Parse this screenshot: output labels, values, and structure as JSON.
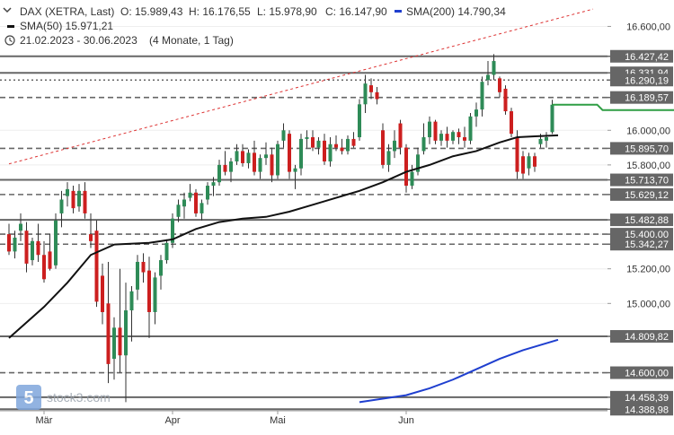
{
  "header": {
    "instrument": "DAX (XETRA, Last)",
    "open_label": "O: 15.989,43",
    "high_label": "H: 16.176,55",
    "low_label": "L: 15.978,90",
    "close_label": "C: 16.147,90",
    "sma200_label": "SMA(200)  14.790,34",
    "sma50_label": "SMA(50)  15.971,21",
    "period": "21.02.2023 - 30.06.2023",
    "range": "(4 Monate, 1 Tag)"
  },
  "watermark": "stock3.com",
  "colors": {
    "up": "#2e8b57",
    "down": "#cc1f1f",
    "sma50": "#111111",
    "sma200": "#1f3fcf",
    "trendline": "#dd3333",
    "level_box": "#666666",
    "current_price": "#2f9e44",
    "header_sma200": "#1f3fcf"
  },
  "chart_data": {
    "type": "candlestick",
    "ylim": [
      14380,
      16680
    ],
    "y_ticks": [
      {
        "value": 16600,
        "label": "16.600,00"
      },
      {
        "value": 16000,
        "label": "16.000,00"
      },
      {
        "value": 15800,
        "label": "15.800,00"
      },
      {
        "value": 15400,
        "label": "15.400,00"
      },
      {
        "value": 15200,
        "label": "15.200,00"
      },
      {
        "value": 15000,
        "label": "15.000,00"
      },
      {
        "value": 14600,
        "label": "14.600,00"
      }
    ],
    "x_ticks": [
      {
        "index": 6,
        "label": "Mär"
      },
      {
        "index": 28,
        "label": "Apr"
      },
      {
        "index": 46,
        "label": "Mai"
      },
      {
        "index": 68,
        "label": "Jun"
      }
    ],
    "levels": [
      {
        "value": 16427.42,
        "label": "16.427,42",
        "style": "solid"
      },
      {
        "value": 16331.94,
        "label": "16.331,94",
        "style": "solid"
      },
      {
        "value": 16290.19,
        "label": "16.290,19",
        "style": "dotted"
      },
      {
        "value": 16189.57,
        "label": "16.189,57",
        "style": "dashed"
      },
      {
        "value": 15895.7,
        "label": "15.895,70",
        "style": "dashed"
      },
      {
        "value": 15713.7,
        "label": "15.713,70",
        "style": "solid"
      },
      {
        "value": 15629.12,
        "label": "15.629,12",
        "style": "dashed"
      },
      {
        "value": 15482.88,
        "label": "15.482,88",
        "style": "solid"
      },
      {
        "value": 15400.0,
        "label": "15.400,00",
        "style": "dashed"
      },
      {
        "value": 15342.27,
        "label": "15.342,27",
        "style": "dashed"
      },
      {
        "value": 14809.82,
        "label": "14.809,82",
        "style": "solid"
      },
      {
        "value": 14600.0,
        "label": "14.600,00",
        "style": "dashed"
      },
      {
        "value": 14458.39,
        "label": "14.458,39",
        "style": "solid"
      },
      {
        "value": 14388.98,
        "label": "14.388,98",
        "style": "solid"
      }
    ],
    "current_price": 16147.9,
    "candles": [
      {
        "o": 15400,
        "h": 15460,
        "l": 15280,
        "c": 15300
      },
      {
        "o": 15300,
        "h": 15420,
        "l": 15260,
        "c": 15380
      },
      {
        "o": 15420,
        "h": 15520,
        "l": 15360,
        "c": 15460
      },
      {
        "o": 15420,
        "h": 15470,
        "l": 15180,
        "c": 15230
      },
      {
        "o": 15250,
        "h": 15380,
        "l": 15220,
        "c": 15360
      },
      {
        "o": 15360,
        "h": 15460,
        "l": 15240,
        "c": 15280
      },
      {
        "o": 15280,
        "h": 15360,
        "l": 15120,
        "c": 15140
      },
      {
        "o": 15300,
        "h": 15400,
        "l": 15190,
        "c": 15200
      },
      {
        "o": 15220,
        "h": 15520,
        "l": 15200,
        "c": 15480
      },
      {
        "o": 15520,
        "h": 15650,
        "l": 15440,
        "c": 15600
      },
      {
        "o": 15620,
        "h": 15700,
        "l": 15560,
        "c": 15660
      },
      {
        "o": 15650,
        "h": 15680,
        "l": 15520,
        "c": 15550
      },
      {
        "o": 15560,
        "h": 15690,
        "l": 15530,
        "c": 15650
      },
      {
        "o": 15650,
        "h": 15700,
        "l": 15490,
        "c": 15520
      },
      {
        "o": 15400,
        "h": 15520,
        "l": 15320,
        "c": 15360
      },
      {
        "o": 15420,
        "h": 15480,
        "l": 14980,
        "c": 15010
      },
      {
        "o": 15160,
        "h": 15230,
        "l": 14880,
        "c": 14950
      },
      {
        "o": 15000,
        "h": 15240,
        "l": 14540,
        "c": 14650
      },
      {
        "o": 14680,
        "h": 14920,
        "l": 14560,
        "c": 14860
      },
      {
        "o": 14860,
        "h": 15200,
        "l": 14600,
        "c": 14700
      },
      {
        "o": 14700,
        "h": 15120,
        "l": 14430,
        "c": 14960
      },
      {
        "o": 14960,
        "h": 15100,
        "l": 14780,
        "c": 15070
      },
      {
        "o": 15080,
        "h": 15280,
        "l": 15020,
        "c": 15240
      },
      {
        "o": 15240,
        "h": 15290,
        "l": 15120,
        "c": 15180
      },
      {
        "o": 15190,
        "h": 15270,
        "l": 14800,
        "c": 14950
      },
      {
        "o": 14950,
        "h": 15180,
        "l": 14880,
        "c": 15150
      },
      {
        "o": 15160,
        "h": 15280,
        "l": 15080,
        "c": 15250
      },
      {
        "o": 15250,
        "h": 15370,
        "l": 15230,
        "c": 15350
      },
      {
        "o": 15350,
        "h": 15520,
        "l": 15320,
        "c": 15490
      },
      {
        "o": 15500,
        "h": 15600,
        "l": 15470,
        "c": 15570
      },
      {
        "o": 15560,
        "h": 15640,
        "l": 15490,
        "c": 15600
      },
      {
        "o": 15610,
        "h": 15690,
        "l": 15590,
        "c": 15640
      },
      {
        "o": 15640,
        "h": 15660,
        "l": 15500,
        "c": 15520
      },
      {
        "o": 15520,
        "h": 15600,
        "l": 15480,
        "c": 15580
      },
      {
        "o": 15600,
        "h": 15700,
        "l": 15570,
        "c": 15680
      },
      {
        "o": 15680,
        "h": 15730,
        "l": 15620,
        "c": 15700
      },
      {
        "o": 15700,
        "h": 15830,
        "l": 15680,
        "c": 15800
      },
      {
        "o": 15800,
        "h": 15880,
        "l": 15740,
        "c": 15760
      },
      {
        "o": 15760,
        "h": 15840,
        "l": 15700,
        "c": 15820
      },
      {
        "o": 15820,
        "h": 15920,
        "l": 15800,
        "c": 15880
      },
      {
        "o": 15880,
        "h": 15920,
        "l": 15790,
        "c": 15810
      },
      {
        "o": 15810,
        "h": 15890,
        "l": 15780,
        "c": 15870
      },
      {
        "o": 15870,
        "h": 15940,
        "l": 15740,
        "c": 15760
      },
      {
        "o": 15760,
        "h": 15860,
        "l": 15720,
        "c": 15840
      },
      {
        "o": 15840,
        "h": 15930,
        "l": 15800,
        "c": 15860
      },
      {
        "o": 15860,
        "h": 15900,
        "l": 15700,
        "c": 15740
      },
      {
        "o": 15740,
        "h": 15940,
        "l": 15720,
        "c": 15920
      },
      {
        "o": 15940,
        "h": 16040,
        "l": 15900,
        "c": 16000
      },
      {
        "o": 15980,
        "h": 16000,
        "l": 15720,
        "c": 15760
      },
      {
        "o": 15760,
        "h": 15800,
        "l": 15660,
        "c": 15780
      },
      {
        "o": 15780,
        "h": 15980,
        "l": 15740,
        "c": 15950
      },
      {
        "o": 15950,
        "h": 16000,
        "l": 15900,
        "c": 15960
      },
      {
        "o": 15960,
        "h": 16000,
        "l": 15880,
        "c": 15900
      },
      {
        "o": 15900,
        "h": 15960,
        "l": 15860,
        "c": 15940
      },
      {
        "o": 15940,
        "h": 15980,
        "l": 15800,
        "c": 15820
      },
      {
        "o": 15820,
        "h": 15960,
        "l": 15790,
        "c": 15920
      },
      {
        "o": 15920,
        "h": 15970,
        "l": 15880,
        "c": 15900
      },
      {
        "o": 15900,
        "h": 15950,
        "l": 15860,
        "c": 15880
      },
      {
        "o": 15880,
        "h": 15970,
        "l": 15860,
        "c": 15950
      },
      {
        "o": 15950,
        "h": 15990,
        "l": 15900,
        "c": 15910
      },
      {
        "o": 15960,
        "h": 16180,
        "l": 15940,
        "c": 16150
      },
      {
        "o": 16150,
        "h": 16320,
        "l": 16100,
        "c": 16270
      },
      {
        "o": 16260,
        "h": 16300,
        "l": 16180,
        "c": 16220
      },
      {
        "o": 16220,
        "h": 16250,
        "l": 16150,
        "c": 16180
      },
      {
        "o": 16000,
        "h": 16040,
        "l": 15780,
        "c": 15800
      },
      {
        "o": 15800,
        "h": 15920,
        "l": 15760,
        "c": 15880
      },
      {
        "o": 15880,
        "h": 16000,
        "l": 15840,
        "c": 15940
      },
      {
        "o": 16040,
        "h": 16060,
        "l": 15860,
        "c": 15900
      },
      {
        "o": 15900,
        "h": 15920,
        "l": 15640,
        "c": 15680
      },
      {
        "o": 15680,
        "h": 15800,
        "l": 15660,
        "c": 15760
      },
      {
        "o": 15760,
        "h": 15900,
        "l": 15740,
        "c": 15860
      },
      {
        "o": 15880,
        "h": 16040,
        "l": 15860,
        "c": 15960
      },
      {
        "o": 15960,
        "h": 16080,
        "l": 15920,
        "c": 16050
      },
      {
        "o": 16050,
        "h": 16060,
        "l": 15920,
        "c": 15940
      },
      {
        "o": 15940,
        "h": 16000,
        "l": 15910,
        "c": 15980
      },
      {
        "o": 15980,
        "h": 16020,
        "l": 15900,
        "c": 15940
      },
      {
        "o": 15940,
        "h": 16000,
        "l": 15920,
        "c": 15990
      },
      {
        "o": 15990,
        "h": 16010,
        "l": 15920,
        "c": 15960
      },
      {
        "o": 15960,
        "h": 16020,
        "l": 15900,
        "c": 15940
      },
      {
        "o": 15940,
        "h": 16100,
        "l": 15920,
        "c": 16080
      },
      {
        "o": 16080,
        "h": 16160,
        "l": 16020,
        "c": 16120
      },
      {
        "o": 16120,
        "h": 16310,
        "l": 16080,
        "c": 16280
      },
      {
        "o": 16290,
        "h": 16400,
        "l": 16260,
        "c": 16320
      },
      {
        "o": 16320,
        "h": 16440,
        "l": 16290,
        "c": 16400
      },
      {
        "o": 16300,
        "h": 16310,
        "l": 16190,
        "c": 16220
      },
      {
        "o": 16240,
        "h": 16260,
        "l": 16090,
        "c": 16110
      },
      {
        "o": 16110,
        "h": 16130,
        "l": 15960,
        "c": 15980
      },
      {
        "o": 15960,
        "h": 16000,
        "l": 15720,
        "c": 15760
      },
      {
        "o": 15850,
        "h": 15880,
        "l": 15720,
        "c": 15750
      },
      {
        "o": 15780,
        "h": 15870,
        "l": 15740,
        "c": 15850
      },
      {
        "o": 15850,
        "h": 15870,
        "l": 15760,
        "c": 15790
      },
      {
        "o": 15920,
        "h": 15980,
        "l": 15900,
        "c": 15950
      },
      {
        "o": 15940,
        "h": 15990,
        "l": 15900,
        "c": 15960
      },
      {
        "o": 15989.43,
        "h": 16176.55,
        "l": 15978.9,
        "c": 16147.9
      }
    ],
    "sma50": [
      [
        0,
        14800
      ],
      [
        6,
        14980
      ],
      [
        10,
        15120
      ],
      [
        14,
        15280
      ],
      [
        18,
        15340
      ],
      [
        24,
        15350
      ],
      [
        28,
        15370
      ],
      [
        32,
        15430
      ],
      [
        36,
        15470
      ],
      [
        40,
        15490
      ],
      [
        44,
        15500
      ],
      [
        48,
        15530
      ],
      [
        52,
        15570
      ],
      [
        56,
        15610
      ],
      [
        60,
        15650
      ],
      [
        64,
        15700
      ],
      [
        68,
        15760
      ],
      [
        72,
        15800
      ],
      [
        76,
        15850
      ],
      [
        80,
        15880
      ],
      [
        84,
        15930
      ],
      [
        87,
        15960
      ],
      [
        90,
        15965
      ],
      [
        94,
        15971.21
      ]
    ],
    "sma200": [
      [
        60,
        14430
      ],
      [
        64,
        14450
      ],
      [
        68,
        14470
      ],
      [
        72,
        14510
      ],
      [
        76,
        14560
      ],
      [
        80,
        14620
      ],
      [
        84,
        14680
      ],
      [
        88,
        14730
      ],
      [
        92,
        14770
      ],
      [
        94,
        14790.34
      ]
    ],
    "trendline": [
      [
        0,
        15806
      ],
      [
        100,
        16700
      ]
    ]
  }
}
